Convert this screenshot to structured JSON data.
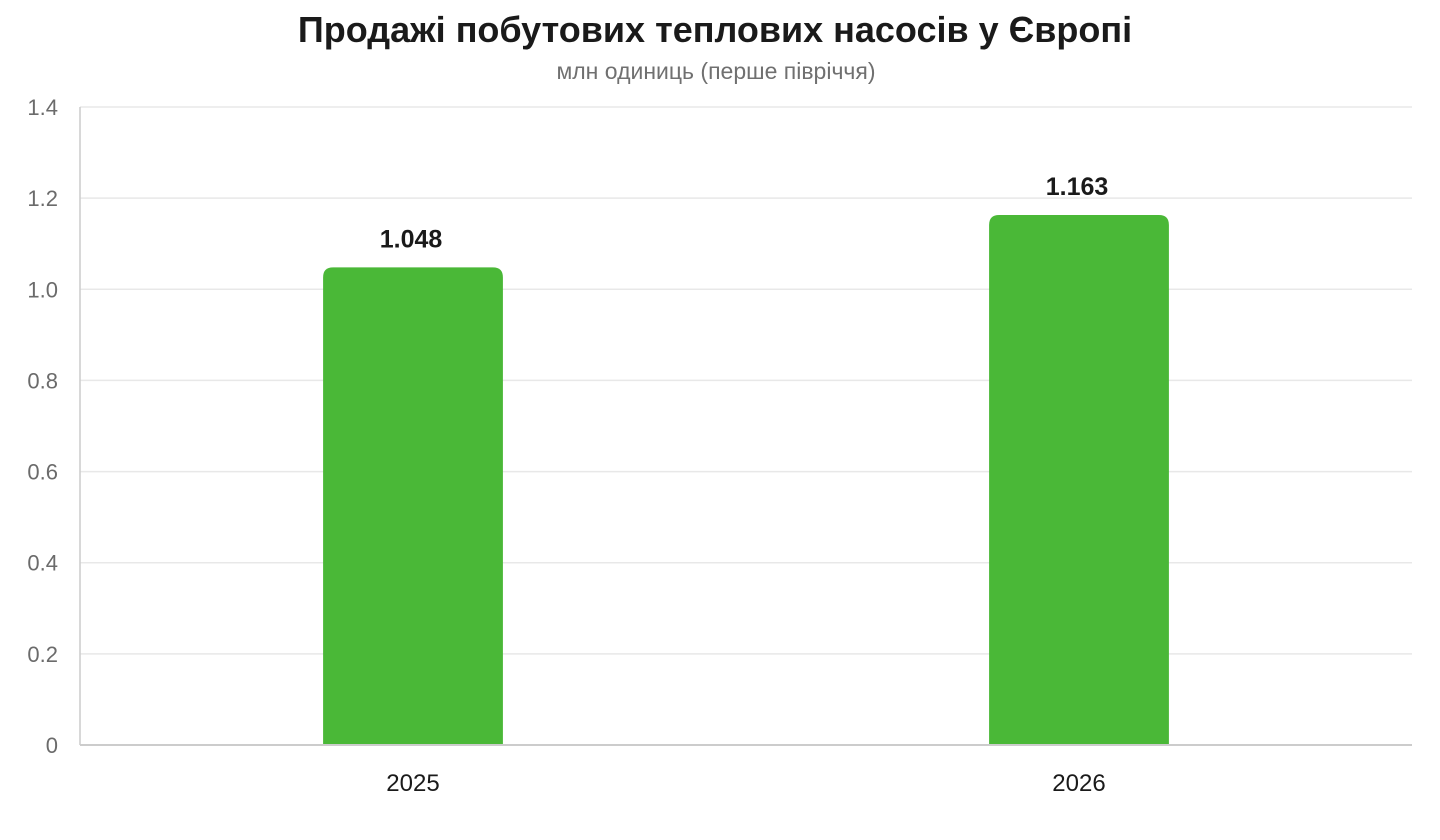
{
  "chart_data": {
    "type": "bar",
    "title": "Продажі побутових теплових насосів у Європі",
    "subtitle": "млн одиниць (перше півріччя)",
    "categories": [
      "2025",
      "2026"
    ],
    "values": [
      1.048,
      1.163
    ],
    "value_labels": [
      "1.048",
      "1.163"
    ],
    "ylim": [
      0,
      1.4
    ],
    "yticks": [
      0,
      0.2,
      0.4,
      0.6,
      0.8,
      1.0,
      1.2,
      1.4
    ],
    "ytick_labels": [
      "0",
      "0.2",
      "0.4",
      "0.6",
      "0.8",
      "1.0",
      "1.2",
      "1.4"
    ],
    "xlabel": "",
    "ylabel": "",
    "grid": true,
    "legend": "none",
    "colors": {
      "bar": "#4ab837",
      "grid": "#e8e8e8",
      "axis": "#cccccc"
    }
  }
}
